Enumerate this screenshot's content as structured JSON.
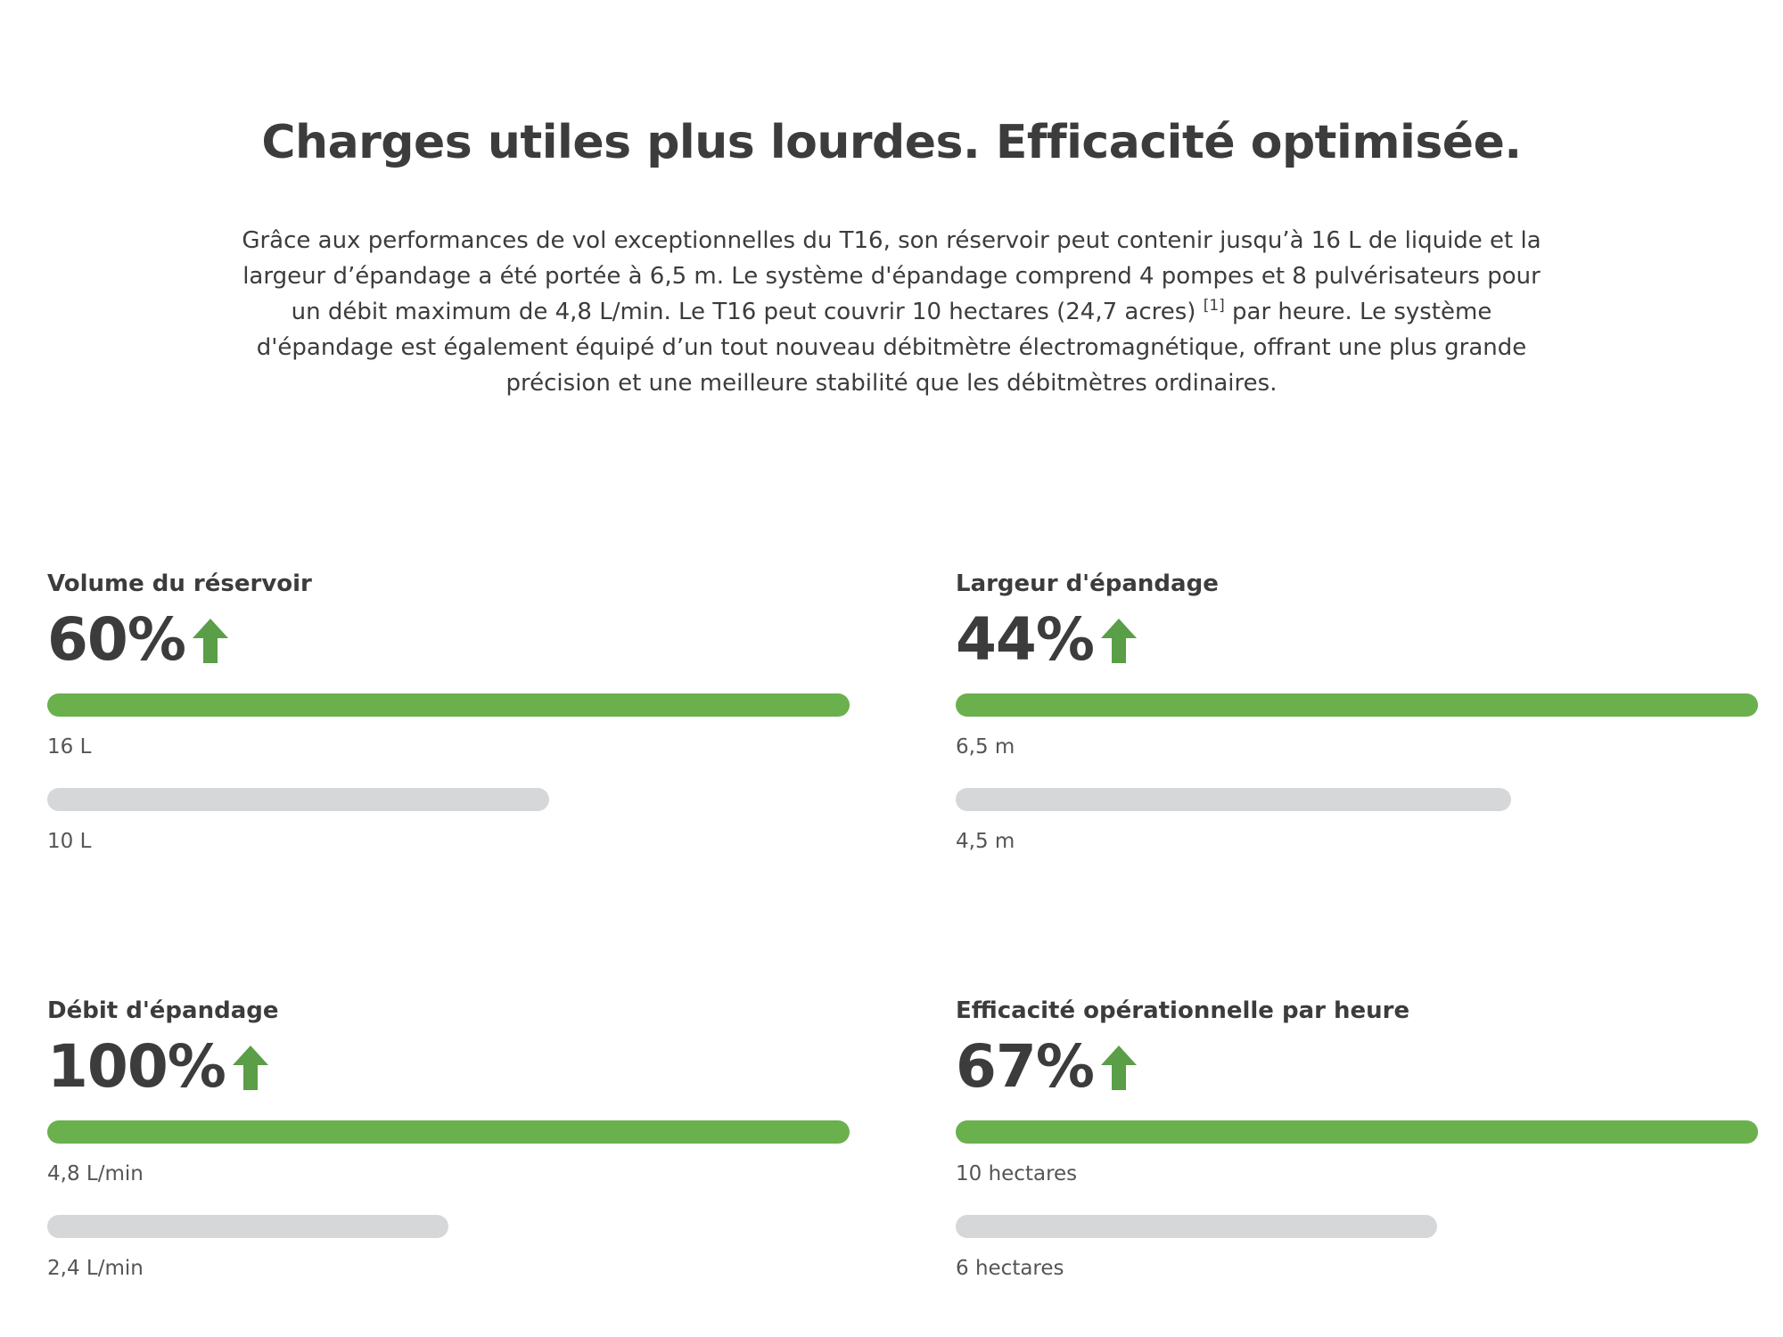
{
  "header": {
    "title": "Charges utiles plus lourdes. Efficacité optimisée.",
    "intro_part1": "Grâce aux performances de vol exceptionnelles du T16, son réservoir peut contenir jusqu’à 16 L de liquide et la largeur d’épandage a été portée à 6,5 m. Le système d'épandage comprend 4 pompes et 8 pulvérisateurs pour un débit maximum de 4,8 L/min. Le T16 peut couvrir 10 hectares (24,7 acres) ",
    "footnote": "[1]",
    "intro_part2": " par heure. Le système d'épandage est également équipé d’un tout nouveau débitmètre électromagnétique, offrant une plus grande précision et une meilleure stabilité que les débitmètres ordinaires."
  },
  "colors": {
    "accent_green": "#6ab04c",
    "arrow_green": "#5a9e47",
    "baseline_gray": "#d6d7d9",
    "text_dark": "#3c3c3c"
  },
  "stats": [
    {
      "label": "Volume du réservoir",
      "percent": "60%",
      "icon": "arrow-up-icon",
      "new_value": "16 L",
      "old_value": "10 L",
      "old_fraction": 0.625
    },
    {
      "label": "Largeur d'épandage",
      "percent": "44%",
      "icon": "arrow-up-icon",
      "new_value": "6,5 m",
      "old_value": "4,5 m",
      "old_fraction": 0.692
    },
    {
      "label": "Débit d'épandage",
      "percent": "100%",
      "icon": "arrow-up-icon",
      "new_value": "4,8 L/min",
      "old_value": "2,4 L/min",
      "old_fraction": 0.5
    },
    {
      "label": "Efficacité opérationnelle par heure",
      "percent": "67%",
      "icon": "arrow-up-icon",
      "new_value": "10 hectares",
      "old_value": "6 hectares",
      "old_fraction": 0.6
    }
  ]
}
